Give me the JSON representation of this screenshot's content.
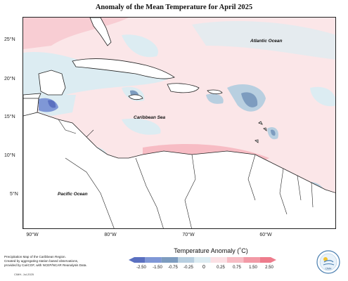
{
  "title": "Anomaly of the Mean Temperature for April 2025",
  "map": {
    "lat_labels": [
      "25°N",
      "20°N",
      "15°N",
      "10°N",
      "5°N"
    ],
    "lon_labels": [
      "90°W",
      "80°W",
      "70°W",
      "60°W"
    ],
    "labels": {
      "atlantic": "Atlantic Ocean",
      "caribbean": "Caribbean Sea",
      "pacific": "Pacific Ocean"
    },
    "colors": {
      "sea_background": "#fbe6e8",
      "land": "#ffffff",
      "coast": "#222222",
      "neutral": "#dcecf2"
    }
  },
  "legend": {
    "title": "Temperature Anomaly (˚C)",
    "ticks": [
      "-2.50",
      "-1.50",
      "-0.75",
      "-0.25",
      "0",
      "0.25",
      "0.75",
      "1.50",
      "2.50"
    ],
    "colors": [
      "#5a70c0",
      "#7f97d6",
      "#7d9cbf",
      "#b8cfe0",
      "#dcecf2",
      "#fbe0e4",
      "#f7bcc4",
      "#f29aa6",
      "#ee7c8c"
    ]
  },
  "footnote": {
    "lines": [
      "Precipitation Map of the Caribbean Region.",
      "Created by aggregating station based observations,",
      "provided by CariCOF, with NCEP/NCAR Reanalysis Data."
    ],
    "credit": "CIMH- Jul-2025"
  },
  "logo": {
    "text": "CIMH"
  }
}
